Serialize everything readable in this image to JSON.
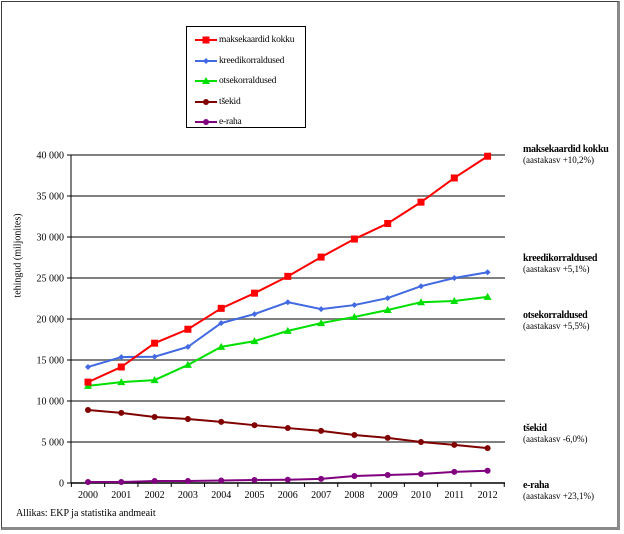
{
  "chart_data": {
    "type": "line",
    "title": "",
    "xlabel": "",
    "ylabel": "tehingud (miljonites)",
    "ylim": [
      0,
      40000
    ],
    "yticks": [
      0,
      5000,
      10000,
      15000,
      20000,
      25000,
      30000,
      35000,
      40000
    ],
    "ytick_labels": [
      "0",
      "5 000",
      "10 000",
      "15 000",
      "20 000",
      "25 000",
      "30 000",
      "35 000",
      "40 000"
    ],
    "grid": "horizontal",
    "legend_position": "top-center",
    "x": [
      "2000",
      "2001",
      "2002",
      "2003",
      "2004",
      "2005",
      "2006",
      "2007",
      "2008",
      "2009",
      "2010",
      "2011",
      "2012"
    ],
    "series": [
      {
        "name": "maksekaardid kokku",
        "color": "#ff0000",
        "marker": "square",
        "values": [
          12300,
          14150,
          17050,
          18750,
          21300,
          23150,
          25200,
          27550,
          29750,
          31650,
          34250,
          37200,
          39850
        ],
        "end_label": "maksekaardid kokku",
        "end_note": "(aastakasv +10,2%)"
      },
      {
        "name": "kreedikorraldused",
        "color": "#4169e1",
        "marker": "diamond",
        "values": [
          14150,
          15350,
          15400,
          16600,
          19500,
          20600,
          22050,
          21200,
          21700,
          22550,
          24000,
          25000,
          25700
        ],
        "end_label": "kreedikorraldused",
        "end_note": "(aastakasv +5,1%)"
      },
      {
        "name": "otsekorraldused",
        "color": "#00e000",
        "marker": "triangle",
        "values": [
          11850,
          12300,
          12550,
          14400,
          16600,
          17300,
          18550,
          19500,
          20250,
          21100,
          22050,
          22200,
          22700
        ],
        "end_label": "otsekorraldused",
        "end_note": "(aastakasv +5,5%)"
      },
      {
        "name": "tšekid",
        "color": "#800000",
        "marker": "circle",
        "values": [
          8900,
          8550,
          8050,
          7800,
          7450,
          7050,
          6700,
          6350,
          5850,
          5500,
          5000,
          4650,
          4250
        ],
        "end_label": "tšekid",
        "end_note": "(aastakasv -6,0%)"
      },
      {
        "name": "e-raha",
        "color": "#800080",
        "marker": "circle",
        "values": [
          120,
          120,
          250,
          250,
          300,
          370,
          400,
          500,
          850,
          980,
          1100,
          1350,
          1500
        ],
        "end_label": "e-raha",
        "end_note": "(aastakasv +23,1%)"
      }
    ],
    "source_note": "Allikas: EKP ja statistika andmeait"
  }
}
